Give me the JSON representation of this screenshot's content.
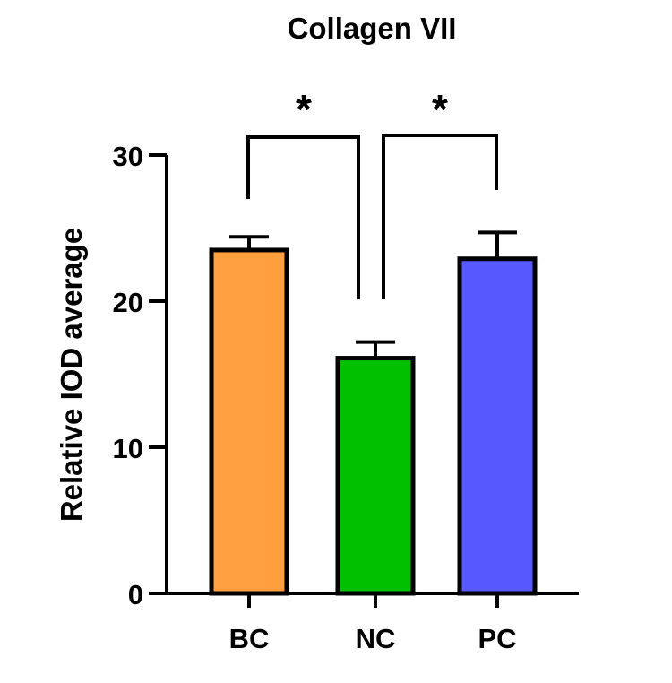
{
  "chart_data": {
    "type": "bar",
    "title": "Collagen VII",
    "xlabel": "",
    "ylabel": "Relative IOD average",
    "ylim": [
      0,
      30
    ],
    "yticks": [
      0,
      10,
      20,
      30
    ],
    "categories": [
      "BC",
      "NC",
      "PC"
    ],
    "values": [
      23.5,
      16.1,
      22.9
    ],
    "error": [
      0.9,
      1.1,
      1.8
    ],
    "colors": [
      "#FF9F40",
      "#00C000",
      "#5858FF"
    ],
    "significance": [
      {
        "from": "BC",
        "to": "NC",
        "label": "*"
      },
      {
        "from": "NC",
        "to": "PC",
        "label": "*"
      }
    ],
    "grid": false,
    "legend": "none"
  }
}
